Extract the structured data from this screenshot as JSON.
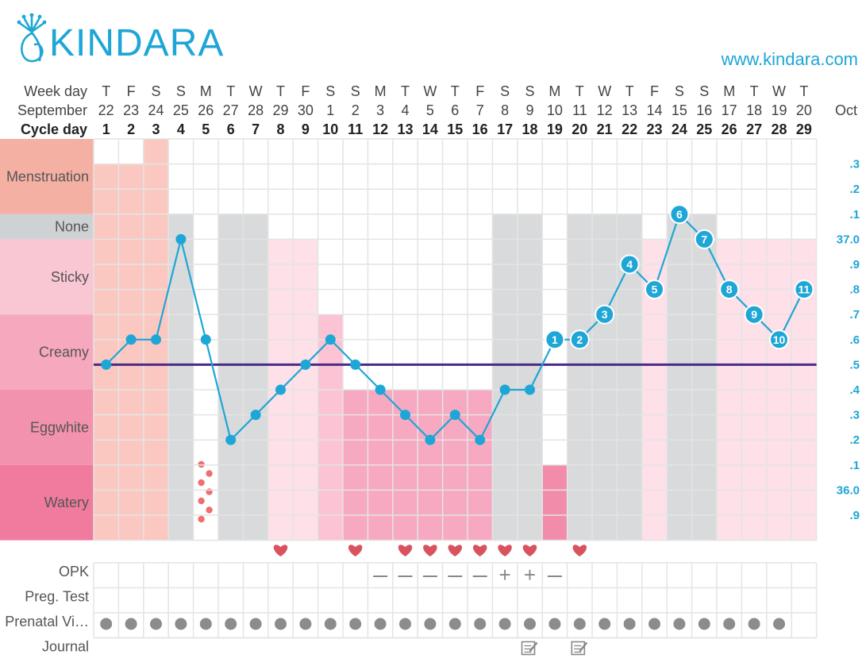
{
  "brand": {
    "name": "KINDARA",
    "url": "www.kindara.com",
    "color": "#1ea6d6"
  },
  "header": {
    "weekday_label": "Week day",
    "month_label": "September",
    "cycle_label": "Cycle day",
    "next_month_label": "Oct",
    "weekdays": [
      "T",
      "F",
      "S",
      "S",
      "M",
      "T",
      "W",
      "T",
      "F",
      "S",
      "S",
      "M",
      "T",
      "W",
      "T",
      "F",
      "S",
      "S",
      "M",
      "T",
      "W",
      "T",
      "F",
      "S",
      "S",
      "M",
      "T",
      "W",
      "T"
    ],
    "dates": [
      "22",
      "23",
      "24",
      "25",
      "26",
      "27",
      "28",
      "29",
      "30",
      "1",
      "2",
      "3",
      "4",
      "5",
      "6",
      "7",
      "8",
      "9",
      "10",
      "11",
      "12",
      "13",
      "14",
      "15",
      "16",
      "17",
      "18",
      "19",
      "20"
    ],
    "cycle_days": [
      "1",
      "2",
      "3",
      "4",
      "5",
      "6",
      "7",
      "8",
      "9",
      "10",
      "11",
      "12",
      "13",
      "14",
      "15",
      "16",
      "17",
      "18",
      "19",
      "20",
      "21",
      "22",
      "23",
      "24",
      "25",
      "26",
      "27",
      "28",
      "29"
    ]
  },
  "fluid_categories": [
    {
      "label": "Menstruation",
      "color": "#f5b0a4"
    },
    {
      "label": "None",
      "color": "#cfd2d4"
    },
    {
      "label": "Sticky",
      "color": "#f9c6d3"
    },
    {
      "label": "Creamy",
      "color": "#f6a8bf"
    },
    {
      "label": "Eggwhite",
      "color": "#f392ae"
    },
    {
      "label": "Watery",
      "color": "#f07b9e"
    }
  ],
  "temperature_axis": {
    "labels": [
      ".3",
      ".2",
      ".1",
      "37.0",
      ".9",
      ".8",
      ".7",
      ".6",
      ".5",
      ".4",
      ".3",
      ".2",
      ".1",
      "36.0",
      ".9"
    ],
    "values": [
      37.3,
      37.2,
      37.1,
      37.0,
      36.9,
      36.8,
      36.7,
      36.6,
      36.5,
      36.4,
      36.3,
      36.2,
      36.1,
      36.0,
      35.9
    ],
    "color": "#1ea6d6"
  },
  "coverline": {
    "value": 36.5,
    "color": "#4b2a85"
  },
  "chart_data": {
    "type": "line",
    "title": "",
    "xlabel": "Cycle day",
    "ylabel": "",
    "x": [
      1,
      2,
      3,
      4,
      5,
      6,
      7,
      8,
      9,
      10,
      11,
      12,
      13,
      14,
      15,
      16,
      17,
      18,
      19,
      20,
      21,
      22,
      23,
      24,
      25,
      26,
      27,
      28,
      29
    ],
    "series": [
      {
        "values": [
          36.5,
          36.6,
          36.6,
          37.0,
          36.6,
          36.2,
          36.3,
          36.4,
          36.5,
          36.6,
          36.5,
          36.4,
          36.3,
          36.2,
          36.3,
          36.2,
          36.4,
          36.4,
          36.6,
          36.6,
          36.7,
          36.9,
          36.8,
          37.1,
          37.0,
          36.8,
          36.7,
          36.6,
          36.8
        ],
        "point_labels": [
          "",
          "",
          "",
          "",
          "",
          "",
          "",
          "",
          "",
          "",
          "",
          "",
          "",
          "",
          "",
          "",
          "",
          "",
          "1",
          "2",
          "3",
          "4",
          "5",
          "6",
          "7",
          "8",
          "9",
          "10",
          "11"
        ]
      }
    ],
    "ylim": [
      35.85,
      37.35
    ],
    "grid": true,
    "fluid": [
      "Menstruation",
      "Menstruation",
      "Menstruation",
      "None",
      "Spotting",
      "None",
      "None",
      "Sticky",
      "Sticky",
      "Creamy",
      "Eggwhite",
      "Eggwhite",
      "Eggwhite",
      "Eggwhite",
      "Eggwhite",
      "Eggwhite",
      "None",
      "None",
      "Watery",
      "None",
      "None",
      "None",
      "Sticky",
      "None",
      "None",
      "Sticky",
      "Sticky",
      "Sticky",
      "Sticky"
    ],
    "menstruation_flow": [
      2,
      2,
      3,
      0,
      0,
      0,
      0,
      0,
      0,
      0,
      0,
      0,
      0,
      0,
      0,
      0,
      0,
      0,
      0,
      0,
      0,
      0,
      0,
      0,
      0,
      0,
      0,
      0,
      0
    ],
    "sex": [
      8,
      11,
      13,
      14,
      15,
      16,
      17,
      18,
      20
    ],
    "opk": [
      "",
      "",
      "",
      "",
      "",
      "",
      "",
      "",
      "",
      "",
      "",
      "–",
      "–",
      "–",
      "–",
      "–",
      "+",
      "+",
      "–",
      "",
      "",
      "",
      "",
      "",
      "",
      "",
      "",
      "",
      ""
    ],
    "prenatal_vitamins_days": 28,
    "journal_days": [
      18,
      20
    ]
  },
  "rows": {
    "opk_label": "OPK",
    "preg_label": "Preg. Test",
    "prenatal_label": "Prenatal Vi…",
    "journal_label": "Journal"
  }
}
